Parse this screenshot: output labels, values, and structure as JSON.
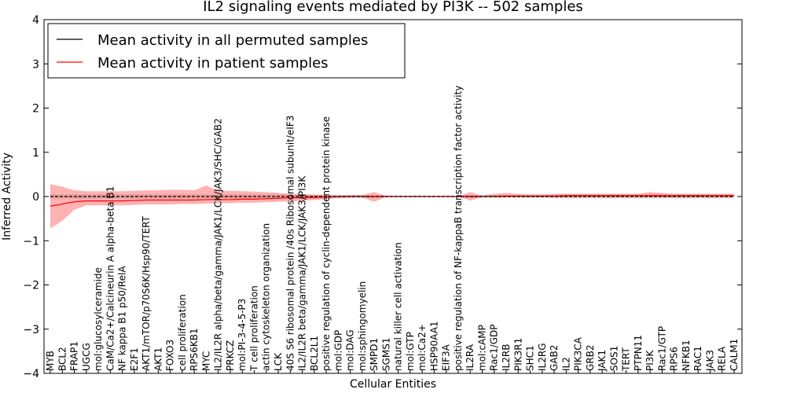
{
  "chart_data": {
    "type": "line",
    "title": "IL2 signaling events mediated by PI3K -- 502 samples",
    "xlabel": "Cellular Entities",
    "ylabel": "Inferred Activity",
    "ylim": [
      -4,
      4
    ],
    "yticks": [
      "−4",
      "−3",
      "−2",
      "−1",
      "0",
      "1",
      "2",
      "3",
      "4"
    ],
    "grid": false,
    "legend_position": "top-left",
    "categories": [
      "MYB",
      "BCL2",
      "FRAP1",
      "UGCG",
      "mol:glucosylceramide",
      "CaM/Ca2+/Calcineurin A alpha-beta B1",
      "NF kappa B1 p50/RelA",
      "E2F1",
      "AKT1/mTOR/p70S6K/Hsp90/TERT",
      "AKT1",
      "FOXO3",
      "cell proliferation",
      "RPS6KB1",
      "MYC",
      "IL2/IL2R alpha/beta/gamma/JAK1/LCK/JAK3/SHC/GAB2",
      "PRKCZ",
      "mol:PI-3-4-5-P3",
      "T cell proliferation",
      "actin cytoskeleton organization",
      "LCK",
      "40S S6 ribosomal protein /40s Ribosomal subunit/eIF3",
      "IL2/IL2R beta/gamma/JAK1/LCK/JAK3/PI3K",
      "BCL2L1",
      "positive regulation of cyclin-dependent protein kinase",
      "mol:GDP",
      "mol:DAG",
      "mol:sphingomyelin",
      "SMPD1",
      "SGMS1",
      "natural killer cell activation",
      "mol:GTP",
      "mol:Ca2+",
      "HSP90AA1",
      "EIF3A",
      "positive regulation of NF-kappaB transcription factor activity",
      "IL2RA",
      "mol:cAMP",
      "Rac1/GDP",
      "IL2RB",
      "PIK3R1",
      "SHC1",
      "IL2RG",
      "GAB2",
      "IL2",
      "PIK3CA",
      "GRB2",
      "JAK1",
      "SOS1",
      "TERT",
      "PTPN11",
      "PI3K",
      "Rac1/GTP",
      "RPS6",
      "NFKB1",
      "RAC1",
      "JAK3",
      "RELA",
      "CALM1"
    ],
    "series": [
      {
        "name": "Mean activity in all permuted samples",
        "color": "#000000",
        "values": [
          0.0,
          0.0,
          0.0,
          0.0,
          0.0,
          0.0,
          0.0,
          0.0,
          0.0,
          0.0,
          0.0,
          0.0,
          0.0,
          0.0,
          0.0,
          0.0,
          0.0,
          0.0,
          0.0,
          0.0,
          0.0,
          0.0,
          0.0,
          0.0,
          0.0,
          0.0,
          0.0,
          0.0,
          0.0,
          0.0,
          0.0,
          0.0,
          0.0,
          0.0,
          0.0,
          0.0,
          0.0,
          0.0,
          0.0,
          0.0,
          0.0,
          0.0,
          0.0,
          0.0,
          0.0,
          0.0,
          0.0,
          0.0,
          0.0,
          0.0,
          0.0,
          0.0,
          0.0,
          0.0,
          0.0,
          0.0,
          0.0,
          0.0
        ],
        "band_lower": [
          -0.05,
          -0.05,
          -0.05,
          -0.05,
          -0.05,
          -0.05,
          -0.05,
          -0.05,
          -0.05,
          -0.05,
          -0.05,
          -0.05,
          -0.05,
          -0.05,
          -0.05,
          -0.05,
          -0.05,
          -0.05,
          -0.05,
          -0.05,
          -0.05,
          -0.05,
          -0.05,
          -0.05,
          -0.04,
          -0.03,
          -0.03,
          -0.03,
          -0.02,
          -0.02,
          -0.02,
          -0.02,
          -0.02,
          -0.02,
          -0.02,
          -0.03,
          -0.03,
          -0.03,
          -0.03,
          -0.03,
          -0.03,
          -0.03,
          -0.04,
          -0.05,
          -0.05,
          -0.05,
          -0.05,
          -0.05,
          -0.05,
          -0.05,
          -0.05,
          -0.05,
          -0.05,
          -0.05,
          -0.05,
          -0.05,
          -0.05,
          -0.05
        ],
        "band_upper": [
          0.05,
          0.05,
          0.05,
          0.05,
          0.05,
          0.05,
          0.05,
          0.05,
          0.05,
          0.05,
          0.05,
          0.05,
          0.05,
          0.05,
          0.05,
          0.05,
          0.05,
          0.05,
          0.05,
          0.05,
          0.05,
          0.05,
          0.05,
          0.05,
          0.04,
          0.03,
          0.03,
          0.03,
          0.02,
          0.02,
          0.02,
          0.02,
          0.02,
          0.02,
          0.02,
          0.03,
          0.03,
          0.03,
          0.03,
          0.03,
          0.03,
          0.03,
          0.04,
          0.05,
          0.05,
          0.05,
          0.05,
          0.05,
          0.05,
          0.05,
          0.05,
          0.05,
          0.05,
          0.05,
          0.05,
          0.05,
          0.05,
          0.05
        ]
      },
      {
        "name": "Mean activity in patient samples",
        "color": "#ff0000",
        "values": [
          -0.22,
          -0.17,
          -0.12,
          -0.1,
          -0.1,
          -0.1,
          -0.1,
          -0.09,
          -0.08,
          -0.08,
          -0.08,
          -0.08,
          -0.08,
          -0.07,
          -0.07,
          -0.07,
          -0.06,
          -0.06,
          -0.05,
          -0.04,
          -0.03,
          -0.03,
          -0.02,
          -0.01,
          0.0,
          0.0,
          0.0,
          0.0,
          0.0,
          0.0,
          0.0,
          0.0,
          0.0,
          0.0,
          0.0,
          0.0,
          0.0,
          0.0,
          0.01,
          0.01,
          0.01,
          0.01,
          0.01,
          0.02,
          0.02,
          0.02,
          0.02,
          0.02,
          0.02,
          0.02,
          0.02,
          0.02,
          0.02,
          0.02,
          0.02,
          0.02,
          0.02,
          0.02
        ],
        "band_lower": [
          -0.72,
          -0.55,
          -0.3,
          -0.2,
          -0.2,
          -0.2,
          -0.2,
          -0.19,
          -0.18,
          -0.18,
          -0.18,
          -0.17,
          -0.17,
          -0.16,
          -0.15,
          -0.15,
          -0.14,
          -0.14,
          -0.13,
          -0.12,
          -0.11,
          -0.1,
          -0.08,
          -0.06,
          -0.03,
          -0.02,
          -0.02,
          -0.12,
          -0.01,
          -0.01,
          -0.01,
          -0.01,
          -0.01,
          -0.01,
          -0.01,
          -0.09,
          -0.01,
          -0.02,
          -0.02,
          -0.02,
          -0.02,
          -0.02,
          -0.02,
          -0.02,
          -0.02,
          -0.02,
          -0.02,
          -0.02,
          -0.02,
          -0.02,
          -0.02,
          -0.02,
          -0.02,
          -0.02,
          -0.02,
          -0.02,
          -0.02,
          -0.02
        ],
        "band_upper": [
          0.28,
          0.22,
          0.14,
          0.12,
          0.12,
          0.12,
          0.12,
          0.13,
          0.14,
          0.14,
          0.15,
          0.15,
          0.14,
          0.25,
          0.13,
          0.13,
          0.12,
          0.11,
          0.1,
          0.08,
          0.06,
          0.05,
          0.04,
          0.03,
          0.02,
          0.03,
          0.03,
          0.1,
          0.02,
          0.01,
          0.01,
          0.01,
          0.01,
          0.01,
          0.01,
          0.1,
          0.02,
          0.06,
          0.08,
          0.06,
          0.05,
          0.05,
          0.06,
          0.06,
          0.06,
          0.06,
          0.06,
          0.06,
          0.06,
          0.06,
          0.1,
          0.08,
          0.06,
          0.06,
          0.06,
          0.06,
          0.06,
          0.06
        ]
      }
    ]
  }
}
